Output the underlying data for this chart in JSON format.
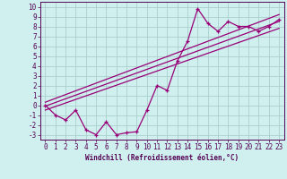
{
  "xlabel": "Windchill (Refroidissement éolien,°C)",
  "bg_color": "#cff0ee",
  "grid_color": "#aacfcc",
  "line_color": "#990077",
  "xlim": [
    -0.5,
    23.5
  ],
  "ylim": [
    -3.5,
    10.5
  ],
  "xticks": [
    0,
    1,
    2,
    3,
    4,
    5,
    6,
    7,
    8,
    9,
    10,
    11,
    12,
    13,
    14,
    15,
    16,
    17,
    18,
    19,
    20,
    21,
    22,
    23
  ],
  "yticks": [
    -3,
    -2,
    -1,
    0,
    1,
    2,
    3,
    4,
    5,
    6,
    7,
    8,
    9,
    10
  ],
  "scatter_x": [
    0,
    1,
    2,
    3,
    4,
    5,
    6,
    7,
    8,
    9,
    10,
    11,
    12,
    13,
    14,
    15,
    16,
    17,
    18,
    19,
    20,
    21,
    22,
    23
  ],
  "scatter_y": [
    0,
    -1,
    -1.5,
    -0.5,
    -2.5,
    -3,
    -1.7,
    -3,
    -2.8,
    -2.7,
    -0.5,
    2,
    1.5,
    4.5,
    6.5,
    9.8,
    8.3,
    7.5,
    8.5,
    8,
    8,
    7.5,
    8,
    8.7
  ],
  "line1_x": [
    0,
    23
  ],
  "line1_y": [
    -0.5,
    7.8
  ],
  "line2_x": [
    0,
    23
  ],
  "line2_y": [
    -0.1,
    8.5
  ],
  "line3_x": [
    0,
    23
  ],
  "line3_y": [
    0.3,
    9.2
  ],
  "tick_fontsize": 5.5,
  "xlabel_fontsize": 5.5,
  "spine_color": "#550055",
  "tick_color": "#550055",
  "xlabel_color": "#550055"
}
